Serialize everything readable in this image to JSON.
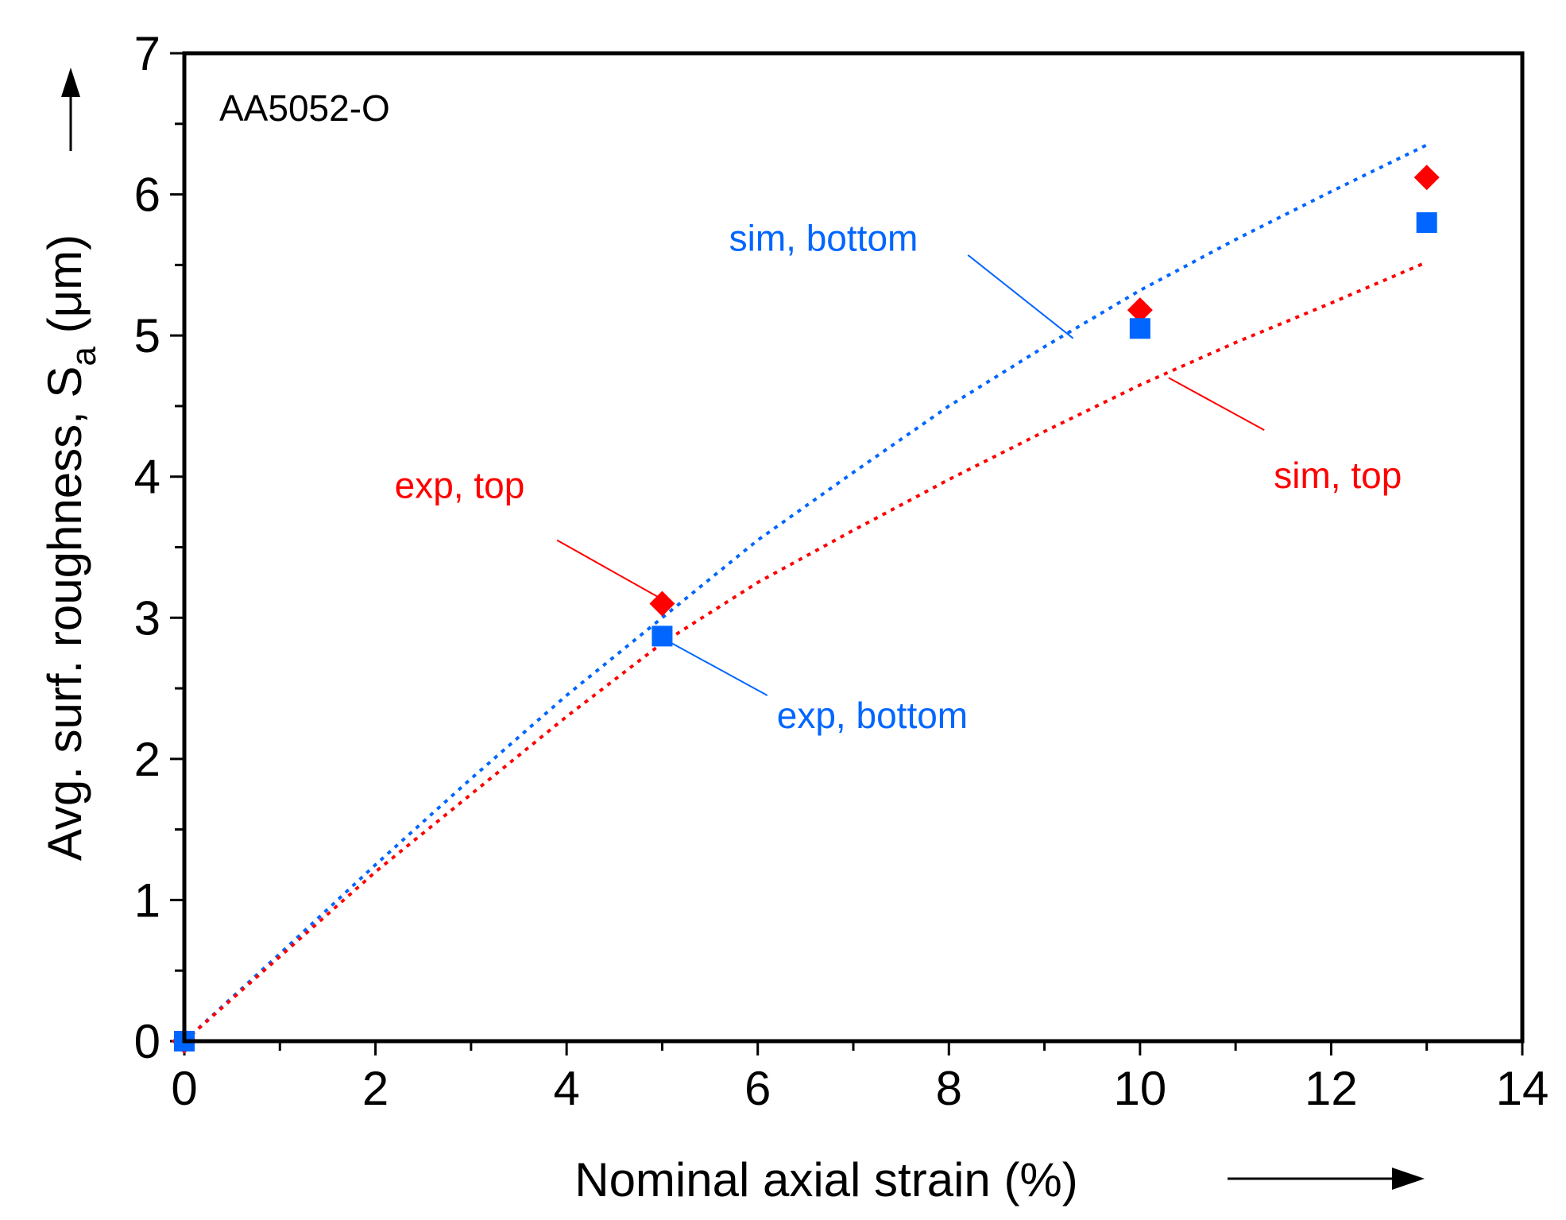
{
  "chart_data": {
    "type": "scatter",
    "title": "",
    "panel_label": "AA5052-O",
    "xlabel": "Nominal axial strain (%)",
    "ylabel": "Avg. surf. roughness, S",
    "ylabel_subscript": "a",
    "ylabel_unit": " (μm)",
    "xlim": [
      0,
      14
    ],
    "ylim": [
      0,
      7
    ],
    "x_ticks": [
      0,
      2,
      4,
      6,
      8,
      10,
      12,
      14
    ],
    "x_tick_labels": [
      "0",
      "2",
      "4",
      "6",
      "8",
      "10",
      "12",
      "14"
    ],
    "x_minor_ticks": [
      1,
      3,
      5,
      7,
      9,
      11,
      13
    ],
    "y_ticks": [
      0,
      1,
      2,
      3,
      4,
      5,
      6,
      7
    ],
    "y_tick_labels": [
      "0",
      "1",
      "2",
      "3",
      "4",
      "5",
      "6",
      "7"
    ],
    "y_minor_ticks": [
      0.5,
      1.5,
      2.5,
      3.5,
      4.5,
      5.5,
      6.5
    ],
    "grid": false,
    "colors": {
      "top": "#ff0000",
      "bottom": "#0066ff",
      "axis": "#000000"
    },
    "series": [
      {
        "name": "sim, bottom",
        "kind": "line",
        "style": "dotted",
        "color": "#0066ff",
        "x": [
          0,
          1,
          2,
          3,
          4,
          5,
          6,
          7,
          8,
          9,
          10,
          11,
          12,
          13
        ],
        "y": [
          0,
          0.62,
          1.25,
          1.86,
          2.45,
          3.0,
          3.55,
          4.03,
          4.5,
          4.92,
          5.32,
          5.68,
          6.02,
          6.35
        ]
      },
      {
        "name": "sim, top",
        "kind": "line",
        "style": "dotted",
        "color": "#ff0000",
        "x": [
          0,
          1,
          2,
          3,
          4,
          5,
          6,
          7,
          8,
          9,
          10,
          11,
          12,
          13
        ],
        "y": [
          0,
          0.6,
          1.2,
          1.75,
          2.3,
          2.82,
          3.25,
          3.62,
          3.98,
          4.32,
          4.65,
          4.95,
          5.23,
          5.52
        ]
      },
      {
        "name": "exp, top",
        "kind": "marker",
        "marker": "diamond",
        "color": "#ff0000",
        "x": [
          0,
          5,
          10,
          13
        ],
        "y": [
          0,
          3.1,
          5.18,
          6.12
        ]
      },
      {
        "name": "exp, bottom",
        "kind": "marker",
        "marker": "square",
        "color": "#0066ff",
        "x": [
          0,
          5,
          10,
          13
        ],
        "y": [
          0,
          2.87,
          5.05,
          5.8
        ]
      }
    ],
    "annotations": [
      {
        "text": "sim, bottom",
        "color": "#0066ff",
        "label_at": [
          5.7,
          5.6
        ],
        "leader_from": [
          8.2,
          5.57
        ],
        "leader_to": [
          9.3,
          4.98
        ]
      },
      {
        "text": "sim, top",
        "color": "#ff0000",
        "label_at": [
          11.4,
          3.92
        ],
        "leader_from": [
          11.3,
          4.33
        ],
        "leader_to": [
          10.3,
          4.7
        ]
      },
      {
        "text": "exp, top",
        "color": "#ff0000",
        "label_at": [
          2.2,
          3.85
        ],
        "leader_from": [
          3.9,
          3.55
        ],
        "leader_to": [
          4.95,
          3.15
        ]
      },
      {
        "text": "exp, bottom",
        "color": "#0066ff",
        "label_at": [
          6.2,
          2.22
        ],
        "leader_from": [
          6.1,
          2.45
        ],
        "leader_to": [
          5.1,
          2.82
        ]
      }
    ]
  }
}
